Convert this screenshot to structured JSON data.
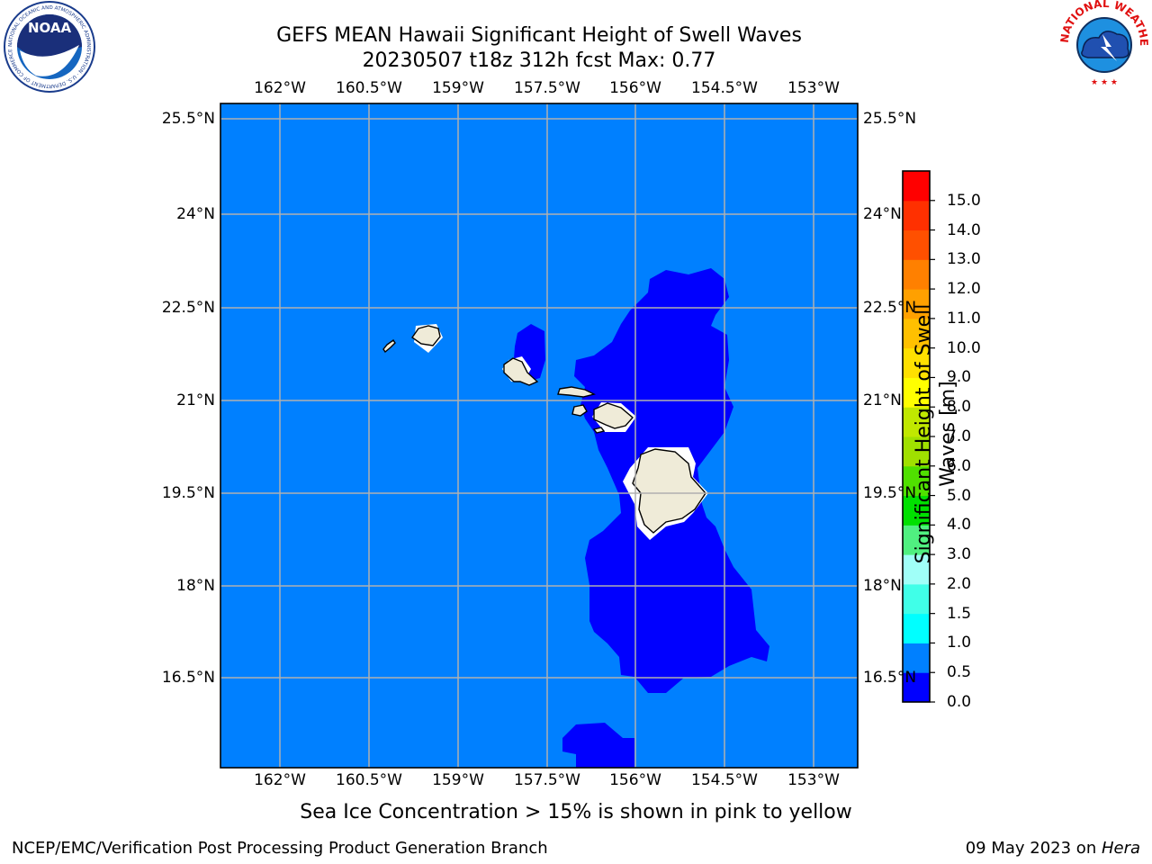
{
  "title": {
    "line1": "GEFS MEAN Hawaii Significant Height of Swell Waves",
    "line2": "20230507 t18z 312h fcst   Max: 0.77"
  },
  "map": {
    "lon_ticks": [
      "162°W",
      "160.5°W",
      "159°W",
      "157.5°W",
      "156°W",
      "154.5°W",
      "153°W"
    ],
    "lat_ticks": [
      "25.5°N",
      "24°N",
      "22.5°N",
      "21°N",
      "19.5°N",
      "18°N",
      "16.5°N"
    ],
    "background_color": "#0080ff",
    "low_band_color": "#0000ff",
    "land_color": "#efebd8"
  },
  "colorbar": {
    "label": "Significant Height of Swell Waves [m]",
    "label_line1": "Significant Height of Swell",
    "label_line2": "Waves [m]",
    "levels": [
      "0.0",
      "0.5",
      "1.0",
      "1.5",
      "2.0",
      "3.0",
      "4.0",
      "5.0",
      "6.0",
      "7.0",
      "8.0",
      "9.0",
      "10.0",
      "11.0",
      "12.0",
      "13.0",
      "14.0",
      "15.0"
    ],
    "colors": [
      "#0000ff",
      "#0080ff",
      "#00ffff",
      "#40ffe8",
      "#a0fff8",
      "#50f080",
      "#00e000",
      "#50e000",
      "#a0e000",
      "#c0e800",
      "#ffff00",
      "#ffe000",
      "#ffc000",
      "#ffa000",
      "#ff8000",
      "#ff5000",
      "#ff3000",
      "#ff0000"
    ]
  },
  "caption": "Sea Ice Concentration > 15% is shown in pink to yellow",
  "footer": {
    "left": "NCEP/EMC/Verification Post Processing Product Generation Branch",
    "date": "09 May 2023 on ",
    "host": "Hera"
  },
  "logos": {
    "noaa_text": "NOAA",
    "noaa_ring": "NATIONAL OCEANIC AND ATMOSPHERIC ADMINISTRATION · U.S. DEPARTMENT OF COMMERCE",
    "nws_ring": "NATIONAL WEATHER SERVICE"
  }
}
